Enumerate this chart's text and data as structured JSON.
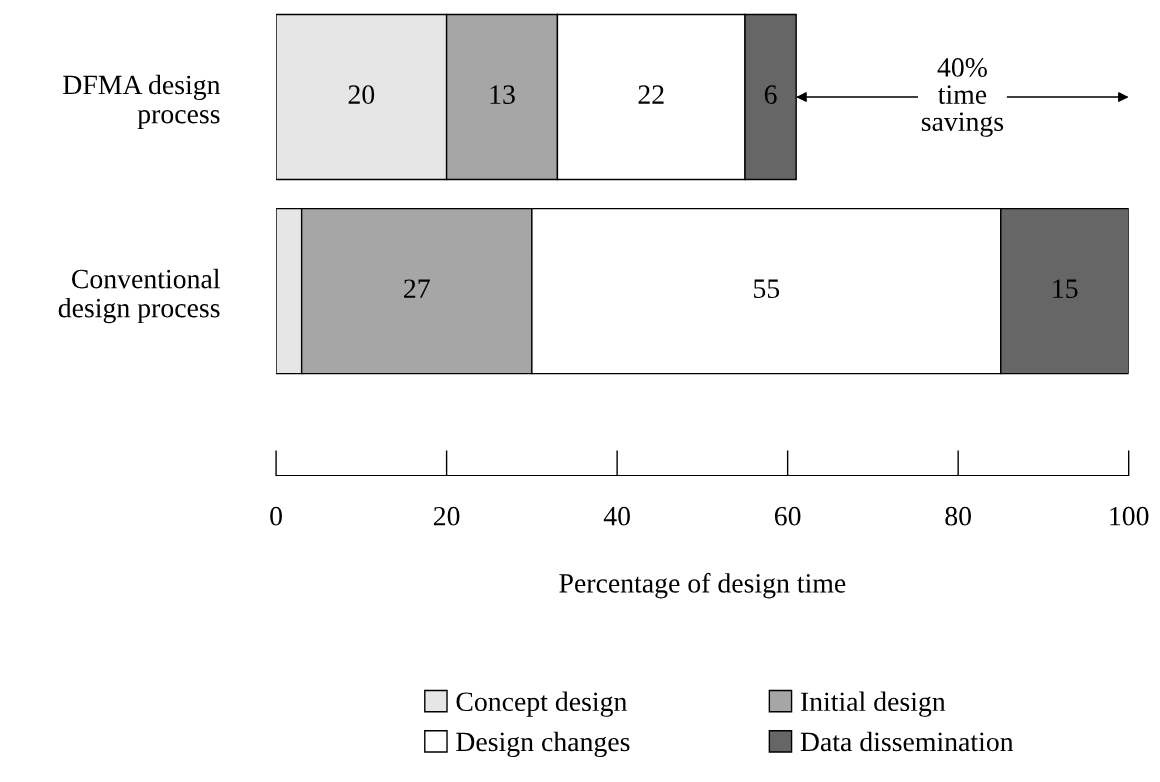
{
  "chart_data": {
    "type": "bar",
    "orientation": "horizontal",
    "stacked": true,
    "categories": [
      "DFMA design\nprocess",
      "Conventional\ndesign process"
    ],
    "series": [
      {
        "name": "Concept design",
        "color": "#e6e6e6",
        "values": [
          20,
          3
        ],
        "value_labels": [
          "20",
          null
        ]
      },
      {
        "name": "Initial design",
        "color": "#a6a6a6",
        "values": [
          13,
          27
        ],
        "value_labels": [
          "13",
          "27"
        ]
      },
      {
        "name": "Design changes",
        "color": "#ffffff",
        "values": [
          22,
          55
        ],
        "value_labels": [
          "22",
          "55"
        ]
      },
      {
        "name": "Data dissemination",
        "color": "#666666",
        "values": [
          6,
          15
        ],
        "value_labels": [
          "6",
          "15"
        ]
      }
    ],
    "xlim": [
      0,
      100
    ],
    "xticks": [
      0,
      20,
      40,
      60,
      80,
      100
    ],
    "xlabel": "Percentage of design time",
    "annotations": [
      "40%\ntime\nsavings"
    ],
    "legend": "bottom",
    "grid": false
  }
}
